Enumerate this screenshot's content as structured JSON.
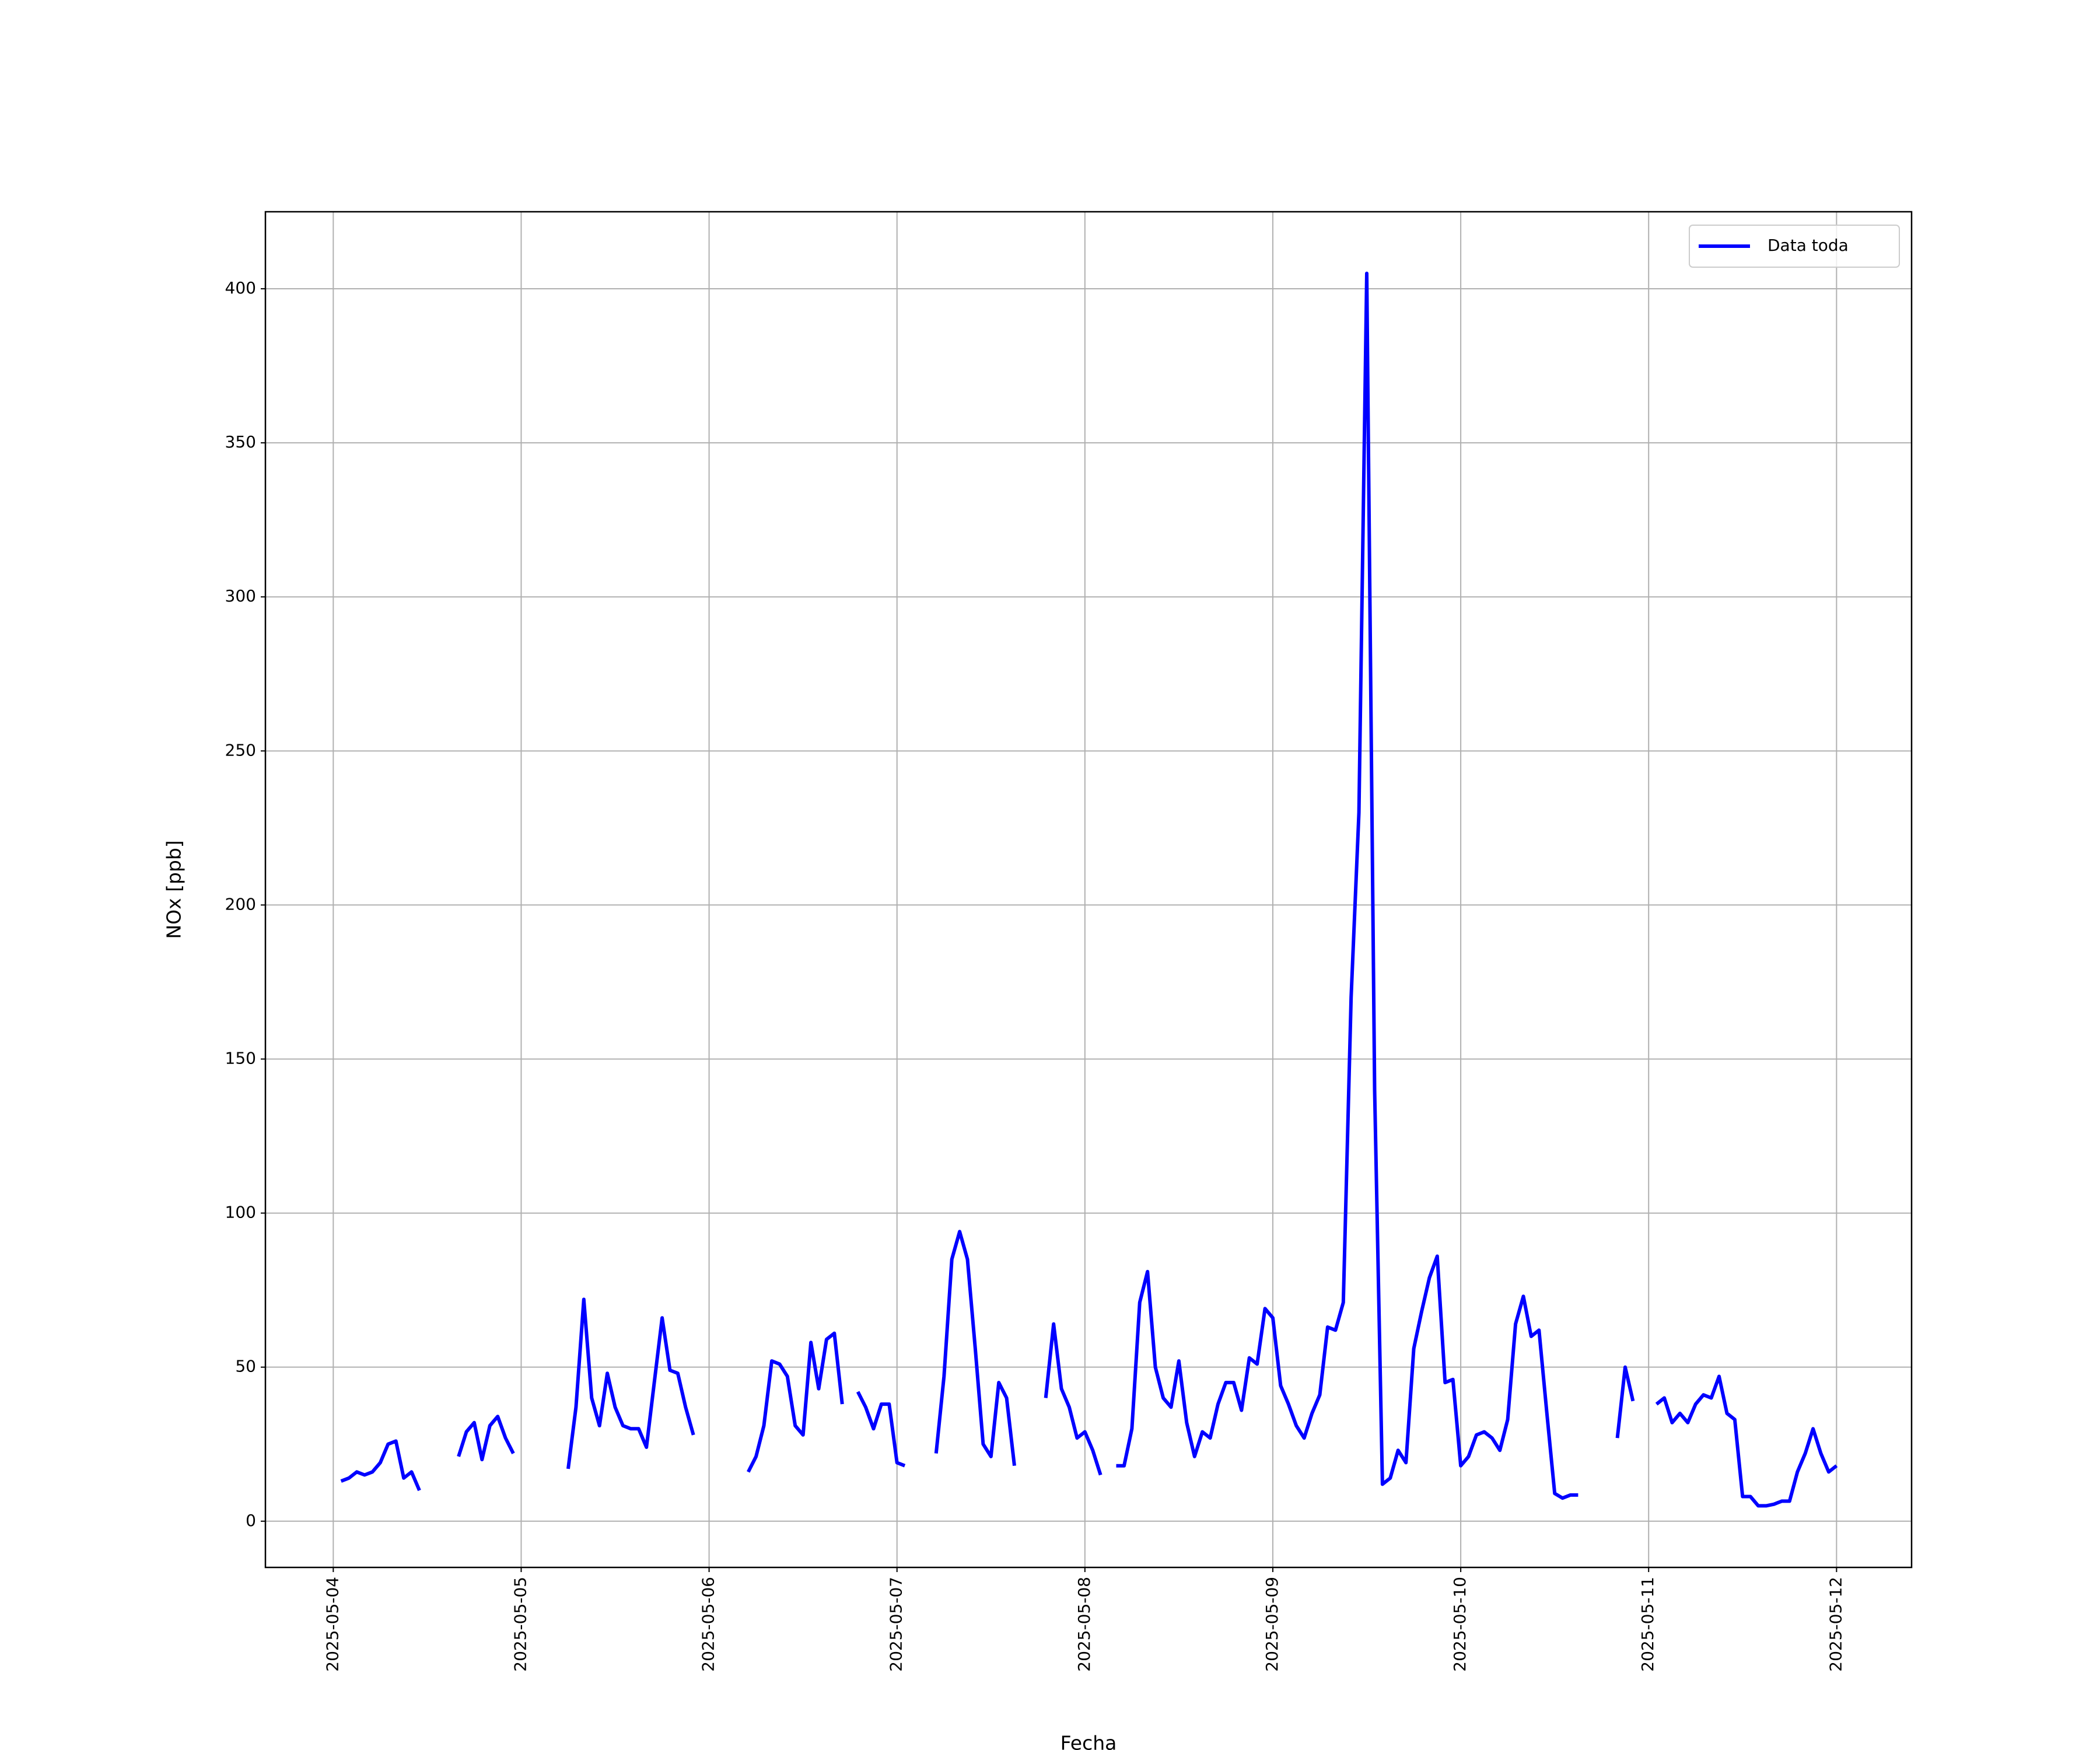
{
  "chart_data": {
    "type": "line",
    "xlabel": "Fecha",
    "ylabel": "NOx [ppb]",
    "grid": true,
    "legend": "upper right",
    "xlim": [
      "2025-05-03 15:20",
      "2025-05-12 09:35"
    ],
    "xticks": [
      "2025-05-04",
      "2025-05-05",
      "2025-05-06",
      "2025-05-07",
      "2025-05-08",
      "2025-05-09",
      "2025-05-10",
      "2025-05-11",
      "2025-05-12"
    ],
    "ylim": [
      -15,
      425
    ],
    "yticks": [
      0,
      50,
      100,
      150,
      200,
      250,
      300,
      350,
      400
    ],
    "x": [
      "2025-05-04 01:00",
      "2025-05-04 02:00",
      "2025-05-04 03:00",
      "2025-05-04 04:00",
      "2025-05-04 05:00",
      "2025-05-04 06:00",
      "2025-05-04 07:00",
      "2025-05-04 08:00",
      "2025-05-04 09:00",
      "2025-05-04 10:00",
      "2025-05-04 11:00",
      "2025-05-04 12:00",
      "2025-05-04 16:00",
      "2025-05-04 17:00",
      "2025-05-04 18:00",
      "2025-05-04 19:00",
      "2025-05-04 20:00",
      "2025-05-04 21:00",
      "2025-05-04 22:00",
      "2025-05-04 23:00",
      "2025-05-05 00:00",
      "2025-05-05 06:00",
      "2025-05-05 07:00",
      "2025-05-05 08:00",
      "2025-05-05 09:00",
      "2025-05-05 10:00",
      "2025-05-05 11:00",
      "2025-05-05 12:00",
      "2025-05-05 13:00",
      "2025-05-05 14:00",
      "2025-05-05 15:00",
      "2025-05-05 16:00",
      "2025-05-05 17:00",
      "2025-05-05 18:00",
      "2025-05-05 19:00",
      "2025-05-05 20:00",
      "2025-05-05 21:00",
      "2025-05-05 22:00",
      "2025-05-05 23:00",
      "2025-05-06 05:00",
      "2025-05-06 06:00",
      "2025-05-06 07:00",
      "2025-05-06 08:00",
      "2025-05-06 09:00",
      "2025-05-06 10:00",
      "2025-05-06 11:00",
      "2025-05-06 12:00",
      "2025-05-06 13:00",
      "2025-05-06 14:00",
      "2025-05-06 15:00",
      "2025-05-06 16:00",
      "2025-05-06 17:00",
      "2025-05-06 18:00",
      "2025-05-06 19:00",
      "2025-05-06 20:00",
      "2025-05-06 21:00",
      "2025-05-06 22:00",
      "2025-05-06 23:00",
      "2025-05-07 00:00",
      "2025-05-07 01:00",
      "2025-05-07 02:00",
      "2025-05-07 05:00",
      "2025-05-07 06:00",
      "2025-05-07 07:00",
      "2025-05-07 08:00",
      "2025-05-07 09:00",
      "2025-05-07 10:00",
      "2025-05-07 11:00",
      "2025-05-07 12:00",
      "2025-05-07 13:00",
      "2025-05-07 14:00",
      "2025-05-07 15:00",
      "2025-05-07 16:00",
      "2025-05-07 19:00",
      "2025-05-07 20:00",
      "2025-05-07 21:00",
      "2025-05-07 22:00",
      "2025-05-07 23:00",
      "2025-05-08 00:00",
      "2025-05-08 01:00",
      "2025-05-08 02:00",
      "2025-05-08 03:00",
      "2025-05-08 04:00",
      "2025-05-08 05:00",
      "2025-05-08 06:00",
      "2025-05-08 07:00",
      "2025-05-08 08:00",
      "2025-05-08 09:00",
      "2025-05-08 10:00",
      "2025-05-08 11:00",
      "2025-05-08 12:00",
      "2025-05-08 13:00",
      "2025-05-08 14:00",
      "2025-05-08 15:00",
      "2025-05-08 16:00",
      "2025-05-08 17:00",
      "2025-05-08 18:00",
      "2025-05-08 19:00",
      "2025-05-08 20:00",
      "2025-05-08 21:00",
      "2025-05-08 22:00",
      "2025-05-08 23:00",
      "2025-05-09 00:00",
      "2025-05-09 01:00",
      "2025-05-09 02:00",
      "2025-05-09 03:00",
      "2025-05-09 04:00",
      "2025-05-09 05:00",
      "2025-05-09 06:00",
      "2025-05-09 07:00",
      "2025-05-09 08:00",
      "2025-05-09 09:00",
      "2025-05-09 10:00",
      "2025-05-09 11:00",
      "2025-05-09 12:00",
      "2025-05-09 13:00",
      "2025-05-09 14:00",
      "2025-05-09 15:00",
      "2025-05-09 16:00",
      "2025-05-09 17:00",
      "2025-05-09 18:00",
      "2025-05-09 19:00",
      "2025-05-09 20:00",
      "2025-05-09 21:00",
      "2025-05-09 22:00",
      "2025-05-09 23:00",
      "2025-05-10 00:00",
      "2025-05-10 01:00",
      "2025-05-10 02:00",
      "2025-05-10 03:00",
      "2025-05-10 04:00",
      "2025-05-10 05:00",
      "2025-05-10 06:00",
      "2025-05-10 07:00",
      "2025-05-10 08:00",
      "2025-05-10 09:00",
      "2025-05-10 10:00",
      "2025-05-10 11:00",
      "2025-05-10 12:00",
      "2025-05-10 13:00",
      "2025-05-10 14:00",
      "2025-05-10 15:00",
      "2025-05-10 16:00",
      "2025-05-10 20:00",
      "2025-05-10 21:00",
      "2025-05-10 22:00",
      "2025-05-10 23:00",
      "2025-05-11 01:00",
      "2025-05-11 02:00",
      "2025-05-11 03:00",
      "2025-05-11 04:00",
      "2025-05-11 05:00",
      "2025-05-11 06:00",
      "2025-05-11 07:00",
      "2025-05-11 08:00",
      "2025-05-11 09:00",
      "2025-05-11 10:00",
      "2025-05-11 11:00",
      "2025-05-11 12:00",
      "2025-05-11 13:00",
      "2025-05-11 14:00",
      "2025-05-11 15:00",
      "2025-05-11 16:00",
      "2025-05-11 17:00",
      "2025-05-11 18:00",
      "2025-05-11 19:00",
      "2025-05-11 20:00",
      "2025-05-11 21:00",
      "2025-05-11 22:00",
      "2025-05-11 23:00",
      "2025-05-12 00:00"
    ],
    "series": [
      {
        "name": "Data toda",
        "color": "#0000ff",
        "values": [
          13,
          14,
          16,
          15,
          16,
          19,
          25,
          26,
          14,
          16,
          10,
          null,
          21,
          29,
          32,
          20,
          31,
          34,
          27,
          22,
          null,
          17,
          37,
          72,
          40,
          31,
          48,
          37,
          31,
          30,
          30,
          24,
          45,
          66,
          49,
          48,
          37,
          28,
          null,
          16,
          21,
          31,
          52,
          51,
          47,
          31,
          28,
          58,
          43,
          59,
          61,
          38,
          null,
          42,
          37,
          30,
          38,
          38,
          19,
          18,
          null,
          22,
          47,
          85,
          94,
          85,
          56,
          25,
          21,
          45,
          40,
          18,
          null,
          40,
          64,
          43,
          37,
          27,
          29,
          23,
          15,
          null,
          18,
          18,
          30,
          71,
          81,
          50,
          40,
          37,
          52,
          32,
          21,
          29,
          27,
          38,
          45,
          45,
          36,
          53,
          51,
          69,
          66,
          44,
          38,
          31,
          27,
          35,
          41,
          63,
          62,
          71,
          170,
          230,
          405,
          140,
          12,
          14,
          23,
          19,
          56,
          68,
          79,
          86,
          45,
          46,
          18,
          21,
          28,
          29,
          27,
          23,
          33,
          64,
          73,
          60,
          62,
          35,
          9,
          7.5,
          8.5,
          8.5,
          null,
          27,
          50,
          39,
          null,
          38,
          40,
          32,
          35,
          32,
          38,
          41,
          40,
          47,
          35,
          33,
          8,
          8,
          5,
          5,
          5.5,
          6.5,
          6.5,
          16,
          22,
          30,
          22,
          16,
          18
        ]
      }
    ]
  }
}
